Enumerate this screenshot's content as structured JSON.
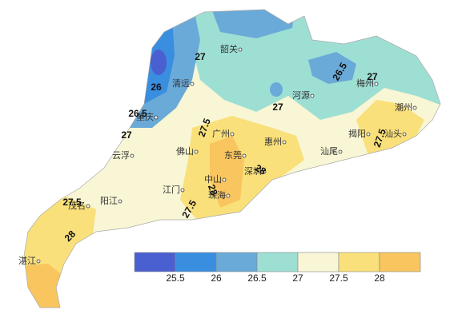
{
  "legend": {
    "colors": [
      "#4a5fd0",
      "#3a8ee0",
      "#6aaad8",
      "#9edfd4",
      "#f8f6d4",
      "#f9e07a",
      "#f9c55e"
    ],
    "ticks": [
      25.5,
      26,
      26.5,
      27,
      27.5,
      28
    ]
  },
  "cities": [
    "韶关",
    "清远",
    "河源",
    "梅州",
    "潮州",
    "揭阳",
    "汕头",
    "肇庆",
    "广州",
    "惠州",
    "汕尾",
    "云浮",
    "佛山",
    "东莞",
    "深圳",
    "中山",
    "江门",
    "珠海",
    "阳江",
    "茂名",
    "湛江"
  ],
  "contour_labels": [
    27,
    26.5,
    26,
    27,
    26.5,
    27,
    27,
    27.5,
    27.5,
    28,
    28,
    27.5,
    27.5,
    28
  ]
}
